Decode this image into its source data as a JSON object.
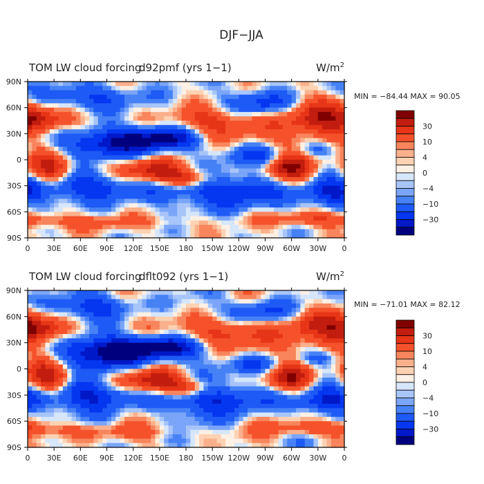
{
  "figure": {
    "title": "DJF−JJA"
  },
  "colorbar": {
    "colors": [
      "#00007f",
      "#0019c8",
      "#0537f0",
      "#1e5af5",
      "#4682f5",
      "#7ba5f8",
      "#a8c5fa",
      "#d6e6fb",
      "#fdf0e4",
      "#fcd2b2",
      "#fbb08c",
      "#f8855c",
      "#f5522b",
      "#e63517",
      "#c21d0e",
      "#800000"
    ],
    "labels": [
      "−30",
      "−10",
      "−4",
      "0",
      "4",
      "10",
      "30"
    ]
  },
  "chart_data": [
    {
      "type": "heatmap",
      "title": "TOM LW cloud forcing",
      "case": "d92pmf (yrs 1−1)",
      "units": "W/m",
      "units_sup": "2",
      "stats": "MIN = −84.44  MAX =  90.05",
      "min": -84.44,
      "max": 90.05,
      "xticks": [
        "0",
        "30E",
        "60E",
        "90E",
        "120E",
        "150E",
        "180",
        "150W",
        "120W",
        "90W",
        "60W",
        "30W",
        "0"
      ],
      "yticks": [
        "90N",
        "60N",
        "30N",
        "0",
        "30S",
        "60S",
        "90S"
      ],
      "xlim": [
        0,
        360
      ],
      "ylim": [
        -90,
        90
      ],
      "field_variant": 0
    },
    {
      "type": "heatmap",
      "title": "TOM LW cloud forcing",
      "case": "dflt092 (yrs 1−1)",
      "units": "W/m",
      "units_sup": "2",
      "stats": "MIN = −71.01  MAX =  82.12",
      "min": -71.01,
      "max": 82.12,
      "xticks": [
        "0",
        "30E",
        "60E",
        "90E",
        "120E",
        "150E",
        "180",
        "150W",
        "120W",
        "90W",
        "60W",
        "30W",
        "0"
      ],
      "yticks": [
        "90N",
        "60N",
        "30N",
        "0",
        "30S",
        "60S",
        "90S"
      ],
      "xlim": [
        0,
        360
      ],
      "ylim": [
        -90,
        90
      ],
      "field_variant": 1
    }
  ]
}
